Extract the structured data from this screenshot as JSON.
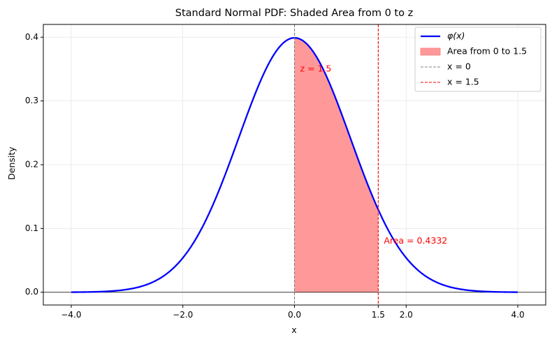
{
  "chart_data": {
    "type": "line",
    "title": "Standard Normal PDF: Shaded Area from 0 to z",
    "xlabel": "x",
    "ylabel": "Density",
    "xlim": [
      -4.5,
      4.5
    ],
    "ylim": [
      -0.02,
      0.42
    ],
    "x_ticks": [
      -4.0,
      -2.0,
      0.0,
      1.5,
      2.0,
      4.0
    ],
    "x_tick_labels": [
      "−4.0",
      "−2.0",
      "0.0",
      "1.5",
      "2.0",
      "4.0"
    ],
    "y_ticks": [
      0.0,
      0.1,
      0.2,
      0.3,
      0.4
    ],
    "y_tick_labels": [
      "0.0",
      "0.1",
      "0.2",
      "0.3",
      "0.4"
    ],
    "grid": true,
    "legend_position": "top-right",
    "series": [
      {
        "name": "φ(x)",
        "kind": "line",
        "color": "#0000ff",
        "x": [
          -4.0,
          -3.75,
          -3.5,
          -3.25,
          -3.0,
          -2.75,
          -2.5,
          -2.25,
          -2.0,
          -1.75,
          -1.5,
          -1.25,
          -1.0,
          -0.75,
          -0.5,
          -0.25,
          0.0,
          0.25,
          0.5,
          0.75,
          1.0,
          1.25,
          1.5,
          1.75,
          2.0,
          2.25,
          2.5,
          2.75,
          3.0,
          3.25,
          3.5,
          3.75,
          4.0
        ],
        "y": [
          0.0001,
          0.0004,
          0.0009,
          0.002,
          0.0044,
          0.0091,
          0.0175,
          0.0317,
          0.054,
          0.0863,
          0.1295,
          0.1826,
          0.242,
          0.3011,
          0.3521,
          0.3867,
          0.3989,
          0.3867,
          0.3521,
          0.3011,
          0.242,
          0.1826,
          0.1295,
          0.0863,
          0.054,
          0.0317,
          0.0175,
          0.0091,
          0.0044,
          0.002,
          0.0009,
          0.0004,
          0.0001
        ]
      },
      {
        "name": "Area from 0 to 1.5",
        "kind": "area",
        "color": "#ff9999",
        "x_from": 0.0,
        "x_to": 1.5
      },
      {
        "name": "x = 0",
        "kind": "vline",
        "color": "#808080",
        "x": 0.0
      },
      {
        "name": "x = 1.5",
        "kind": "vline",
        "color": "#ff0000",
        "x": 1.5
      }
    ],
    "annotations": [
      {
        "text": "z = 1.5",
        "x": 0.1,
        "y": 0.35,
        "color": "#ff0000"
      },
      {
        "text": "Area = 0.4332",
        "x": 1.6,
        "y": 0.08,
        "color": "#ff0000"
      }
    ]
  }
}
